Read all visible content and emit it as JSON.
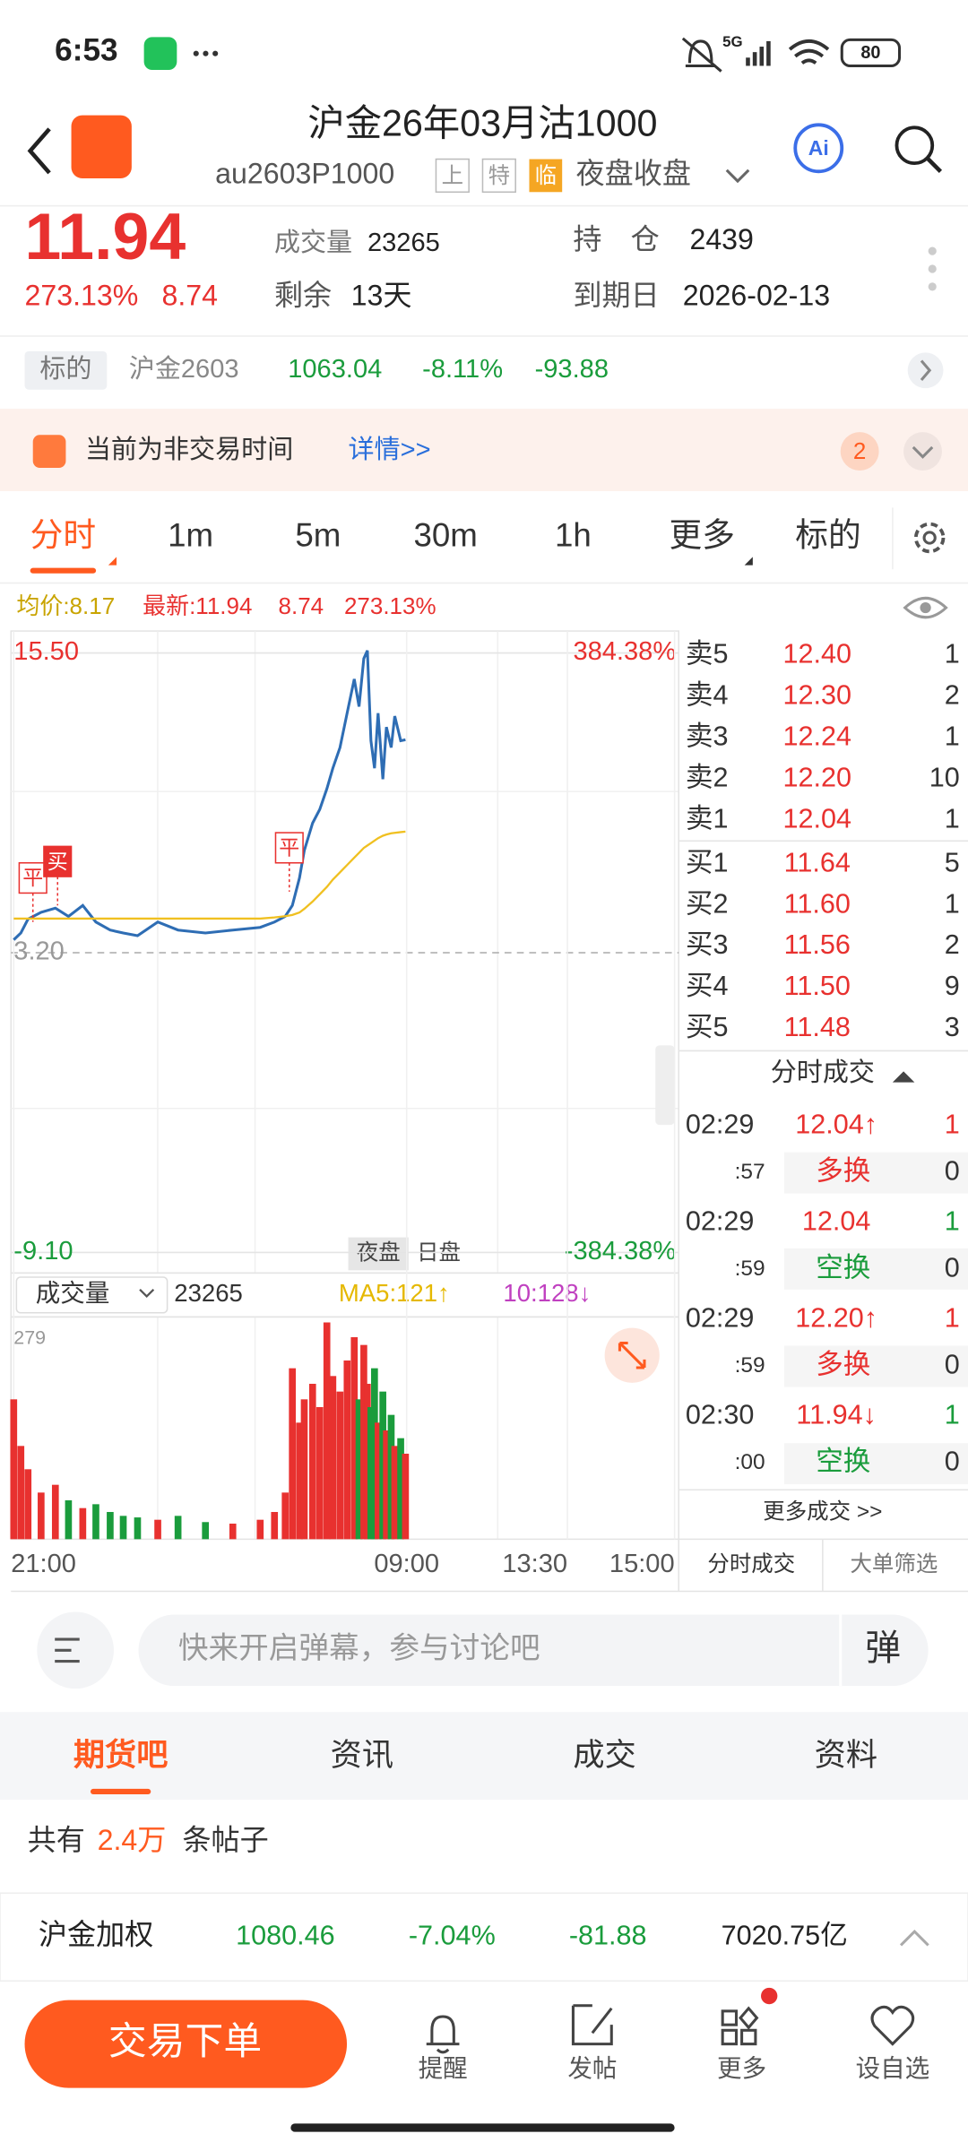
{
  "status_bar": {
    "time": "6:53",
    "network": "5G",
    "battery": "80"
  },
  "header": {
    "title": "沪金26年03月沽1000",
    "code": "au2603P1000",
    "tags": [
      "上",
      "特",
      "临"
    ],
    "session": "夜盘收盘"
  },
  "quote": {
    "price": "11.94",
    "change_pct": "273.13%",
    "change": "8.74",
    "volume_label": "成交量",
    "volume": "23265",
    "remaining_label": "剩余",
    "remaining": "13天",
    "open_interest_label": "持　仓",
    "open_interest": "2439",
    "expiry_label": "到期日",
    "expiry": "2026-02-13"
  },
  "underlying": {
    "tag": "标的",
    "name": "沪金2603",
    "price": "1063.04",
    "change_pct": "-8.11%",
    "change": "-93.88"
  },
  "notice": {
    "text": "当前为非交易时间",
    "link": "详情>>",
    "badge": "2"
  },
  "tabs": [
    "分时",
    "1m",
    "5m",
    "30m",
    "1h",
    "更多",
    "标的"
  ],
  "chart_info": {
    "avg": "均价:8.17",
    "latest": "最新:11.94",
    "change": "8.74",
    "change_pct": "273.13%"
  },
  "chart_data": [
    {
      "type": "line",
      "x": [
        0,
        6,
        12,
        23,
        35,
        46,
        58,
        69,
        81,
        92,
        104,
        121,
        138,
        161,
        184,
        207,
        219,
        228,
        234,
        240,
        244,
        251,
        257,
        263,
        268,
        274,
        280,
        286,
        290,
        294,
        297,
        300,
        303,
        306,
        310,
        313,
        317,
        320,
        325,
        329
      ],
      "xlim": [
        0,
        555
      ],
      "xticks": [
        {
          "value": 0,
          "label": "21:00"
        },
        {
          "value": 330,
          "label": "09:00"
        },
        {
          "value": 465,
          "label": "13:30"
        },
        {
          "value": 555,
          "label": "15:00"
        }
      ],
      "ylim": [
        -9.1,
        15.5
      ],
      "yticks": [
        {
          "value": 15.5,
          "label": "15.50"
        },
        {
          "value": 3.2,
          "label": "3.20"
        },
        {
          "value": -9.1,
          "label": "-9.10"
        }
      ],
      "y2lim": [
        -384.38,
        384.38
      ],
      "y2ticks": [
        {
          "value": 384.38,
          "label": "384.38%"
        },
        {
          "value": -384.38,
          "label": "-384.38%"
        }
      ],
      "series": [
        {
          "color": "#2e6db4",
          "values": [
            3.73,
            4.01,
            4.58,
            4.86,
            5.03,
            4.69,
            5.14,
            4.46,
            4.13,
            4.01,
            3.9,
            4.46,
            4.13,
            4.01,
            4.13,
            4.24,
            4.46,
            4.69,
            5.14,
            6.27,
            7.39,
            8.52,
            9.08,
            9.93,
            10.77,
            11.62,
            13.03,
            14.43,
            13.3,
            15.27,
            15.6,
            11.9,
            10.77,
            13.03,
            10.32,
            12.46,
            11.62,
            12.91,
            11.9,
            11.94
          ]
        },
        {
          "color": "#f0c020",
          "values": [
            4.6,
            4.6,
            4.6,
            4.6,
            4.6,
            4.6,
            4.6,
            4.6,
            4.6,
            4.6,
            4.6,
            4.6,
            4.6,
            4.6,
            4.6,
            4.6,
            4.65,
            4.7,
            4.75,
            4.85,
            5.0,
            5.3,
            5.6,
            5.9,
            6.2,
            6.5,
            6.8,
            7.1,
            7.3,
            7.5,
            7.6,
            7.7,
            7.8,
            7.9,
            8.0,
            8.05,
            8.1,
            8.12,
            8.15,
            8.17
          ]
        }
      ],
      "sessions": [
        "夜盘",
        "日盘"
      ],
      "annotations": [
        "平",
        "买",
        "平"
      ]
    },
    {
      "type": "bar",
      "x": [
        0,
        6,
        12,
        23,
        35,
        46,
        58,
        69,
        81,
        92,
        104,
        121,
        138,
        161,
        184,
        207,
        219,
        228,
        234,
        240,
        244,
        251,
        257,
        263,
        268,
        274,
        280,
        286,
        290,
        294,
        297,
        300,
        303,
        306,
        310,
        313,
        317,
        320,
        325,
        329
      ],
      "values": [
        180,
        120,
        90,
        60,
        70,
        50,
        40,
        45,
        35,
        30,
        28,
        25,
        30,
        22,
        20,
        25,
        35,
        60,
        220,
        150,
        180,
        200,
        170,
        279,
        210,
        190,
        230,
        260,
        180,
        250,
        200,
        170,
        220,
        150,
        190,
        140,
        160,
        120,
        130,
        110
      ],
      "ylim": [
        0,
        279
      ],
      "yticks": [
        279
      ],
      "selector": "成交量",
      "total": "23265",
      "ma5": "MA5:121↑",
      "ma10": "10:128↓"
    }
  ],
  "order_book": {
    "asks": [
      {
        "label": "卖5",
        "price": "12.40",
        "qty": "1"
      },
      {
        "label": "卖4",
        "price": "12.30",
        "qty": "2"
      },
      {
        "label": "卖3",
        "price": "12.24",
        "qty": "1"
      },
      {
        "label": "卖2",
        "price": "12.20",
        "qty": "10"
      },
      {
        "label": "卖1",
        "price": "12.04",
        "qty": "1"
      }
    ],
    "bids": [
      {
        "label": "买1",
        "price": "11.64",
        "qty": "5"
      },
      {
        "label": "买2",
        "price": "11.60",
        "qty": "1"
      },
      {
        "label": "买3",
        "price": "11.56",
        "qty": "2"
      },
      {
        "label": "买4",
        "price": "11.50",
        "qty": "9"
      },
      {
        "label": "买5",
        "price": "11.48",
        "qty": "3"
      }
    ]
  },
  "trades": {
    "title": "分时成交",
    "rows": [
      {
        "time": "02:29",
        "sec": ":57",
        "price": "12.04↑",
        "qty": "1",
        "kind": "多换",
        "kind_qty": "0"
      },
      {
        "time": "02:29",
        "sec": ":59",
        "price": "12.04",
        "qty": "1",
        "kind": "空换",
        "kind_qty": "0"
      },
      {
        "time": "02:29",
        "sec": ":59",
        "price": "12.20↑",
        "qty": "1",
        "kind": "多换",
        "kind_qty": "0"
      },
      {
        "time": "02:30",
        "sec": ":00",
        "price": "11.94↓",
        "qty": "1",
        "kind": "空换",
        "kind_qty": "0"
      }
    ],
    "more": "更多成交 >>",
    "tabs": [
      "分时成交",
      "大单筛选"
    ]
  },
  "comment": {
    "placeholder": "快来开启弹幕，参与讨论吧",
    "button": "弹"
  },
  "bottom_tabs": [
    "期货吧",
    "资讯",
    "成交",
    "资料"
  ],
  "posts": {
    "prefix": "共有",
    "count": "2.4万",
    "suffix": "条帖子"
  },
  "ticker": {
    "name": "沪金加权",
    "price": "1080.46",
    "change_pct": "-7.04%",
    "change": "-81.88",
    "amount": "7020.75亿"
  },
  "actions": {
    "button": "交易下单",
    "items": [
      "提醒",
      "发帖",
      "更多",
      "设自选"
    ]
  }
}
